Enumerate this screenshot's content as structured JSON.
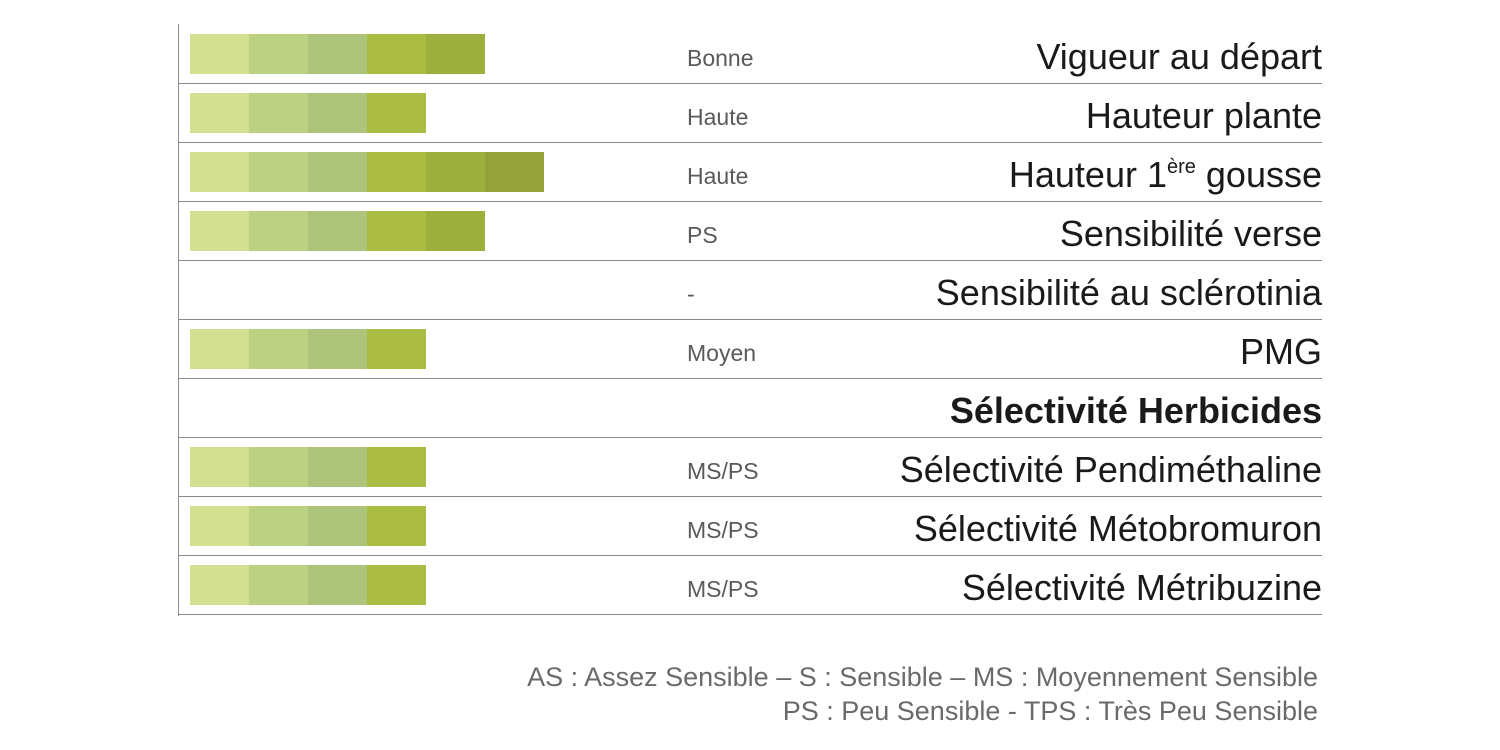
{
  "chart_data": {
    "type": "bar",
    "orientation": "horizontal",
    "categories": [
      "Vigueur au départ",
      "Hauteur plante",
      "Hauteur 1ère gousse",
      "Sensibilité verse",
      "Sensibilité au sclérotinia",
      "PMG",
      "Sélectivité Herbicides",
      "Sélectivité Pendiméthaline",
      "Sélectivité Métobromuron",
      "Sélectivité Métribuzine"
    ],
    "rows": [
      {
        "label": "Vigueur au départ",
        "value_label": "Bonne",
        "score": 5
      },
      {
        "label": "Hauteur plante",
        "value_label": "Haute",
        "score": 4
      },
      {
        "label": "Hauteur 1",
        "label_sup": "ère",
        "label_after": " gousse",
        "value_label": "Haute",
        "score": 6
      },
      {
        "label": "Sensibilité verse",
        "value_label": "PS",
        "score": 5
      },
      {
        "label": "Sensibilité au sclérotinia",
        "value_label": "-",
        "score": 0
      },
      {
        "label": "PMG",
        "value_label": "Moyen",
        "score": 4
      },
      {
        "label": "Sélectivité Herbicides",
        "value_label": "",
        "score": 0,
        "section": true
      },
      {
        "label": "Sélectivité Pendiméthaline",
        "value_label": "MS/PS",
        "score": 4
      },
      {
        "label": "Sélectivité Métobromuron",
        "value_label": "MS/PS",
        "score": 4
      },
      {
        "label": "Sélectivité Métribuzine",
        "value_label": "MS/PS",
        "score": 4
      }
    ],
    "max_score": 6,
    "segment_colors": [
      "#d3e092",
      "#bcd282",
      "#aec47a",
      "#aabd42",
      "#9db03e",
      "#93a33a"
    ],
    "legend": [
      "AS : Assez Sensible –  S : Sensible – MS : Moyennement Sensible",
      "PS : Peu Sensible - TPS : Très Peu Sensible"
    ]
  }
}
